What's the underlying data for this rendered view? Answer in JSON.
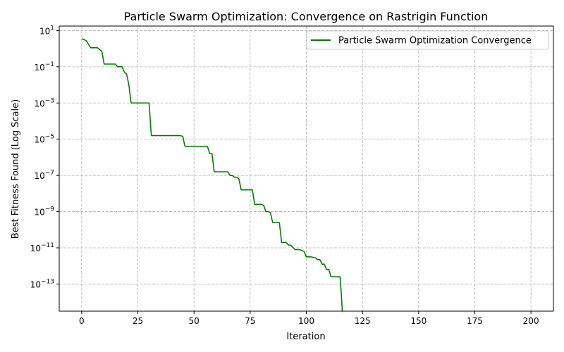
{
  "chart_data": {
    "type": "line",
    "title": "Particle Swarm Optimization: Convergence on Rastrigin Function",
    "xlabel": "Iteration",
    "ylabel": "Best Fitness Found (Log Scale)",
    "xlim": [
      -10,
      210
    ],
    "ylim_log10": [
      -14.5,
      1.25
    ],
    "yscale": "log",
    "grid": true,
    "legend_position": "top-right",
    "x_ticks": [
      0,
      25,
      50,
      75,
      100,
      125,
      150,
      175,
      200
    ],
    "y_ticks": [
      {
        "exp": 1,
        "label": "10",
        "sup": "1"
      },
      {
        "exp": -1,
        "label": "10",
        "sup": "−1"
      },
      {
        "exp": -3,
        "label": "10",
        "sup": "−3"
      },
      {
        "exp": -5,
        "label": "10",
        "sup": "−5"
      },
      {
        "exp": -7,
        "label": "10",
        "sup": "−7"
      },
      {
        "exp": -9,
        "label": "10",
        "sup": "−9"
      },
      {
        "exp": -11,
        "label": "10",
        "sup": "−11"
      },
      {
        "exp": -13,
        "label": "10",
        "sup": "−13"
      }
    ],
    "series": [
      {
        "name": "Particle Swarm Optimization Convergence",
        "color": "#008000",
        "x": [
          0,
          2,
          4,
          6,
          7,
          8,
          9,
          10,
          11,
          12,
          13,
          14,
          15,
          16,
          17,
          18,
          19,
          20,
          21,
          22,
          23,
          25,
          27,
          29,
          30,
          31,
          33,
          35,
          38,
          40,
          42,
          44,
          45,
          46,
          48,
          50,
          52,
          54,
          56,
          57,
          58,
          59,
          61,
          63,
          65,
          66,
          67,
          68,
          69,
          70,
          71,
          72,
          75,
          76,
          77,
          79,
          80,
          81,
          82,
          83,
          84,
          85,
          86,
          88,
          89,
          90,
          91,
          92,
          93,
          95,
          96,
          97,
          99,
          100,
          101,
          102,
          104,
          105,
          106,
          107,
          108,
          109,
          110,
          111,
          112,
          113,
          114,
          115,
          115.6,
          116,
          116.2
        ],
        "y_log10": [
          0.55,
          0.45,
          0.05,
          0.05,
          0.05,
          -0.05,
          -0.15,
          -0.85,
          -0.85,
          -0.85,
          -0.85,
          -0.85,
          -0.85,
          -1.0,
          -1.0,
          -1.0,
          -1.3,
          -1.4,
          -2.0,
          -3.0,
          -3.0,
          -3.0,
          -3.0,
          -3.0,
          -3.0,
          -4.8,
          -4.8,
          -4.8,
          -4.8,
          -4.8,
          -4.8,
          -4.8,
          -4.85,
          -5.4,
          -5.4,
          -5.4,
          -5.4,
          -5.4,
          -5.4,
          -5.8,
          -5.8,
          -6.8,
          -6.8,
          -6.8,
          -6.8,
          -7.0,
          -7.0,
          -7.1,
          -7.1,
          -7.2,
          -7.8,
          -7.8,
          -7.8,
          -7.8,
          -8.6,
          -8.6,
          -8.6,
          -8.65,
          -9.0,
          -9.0,
          -9.05,
          -9.6,
          -9.6,
          -9.6,
          -10.7,
          -10.7,
          -10.7,
          -10.85,
          -10.85,
          -11.1,
          -11.1,
          -11.1,
          -11.2,
          -11.5,
          -11.5,
          -11.5,
          -11.55,
          -11.65,
          -11.65,
          -11.9,
          -11.9,
          -12.2,
          -12.2,
          -12.6,
          -12.6,
          -12.6,
          -12.6,
          -12.6,
          -13.6,
          -14.5,
          -14.5
        ]
      }
    ]
  }
}
